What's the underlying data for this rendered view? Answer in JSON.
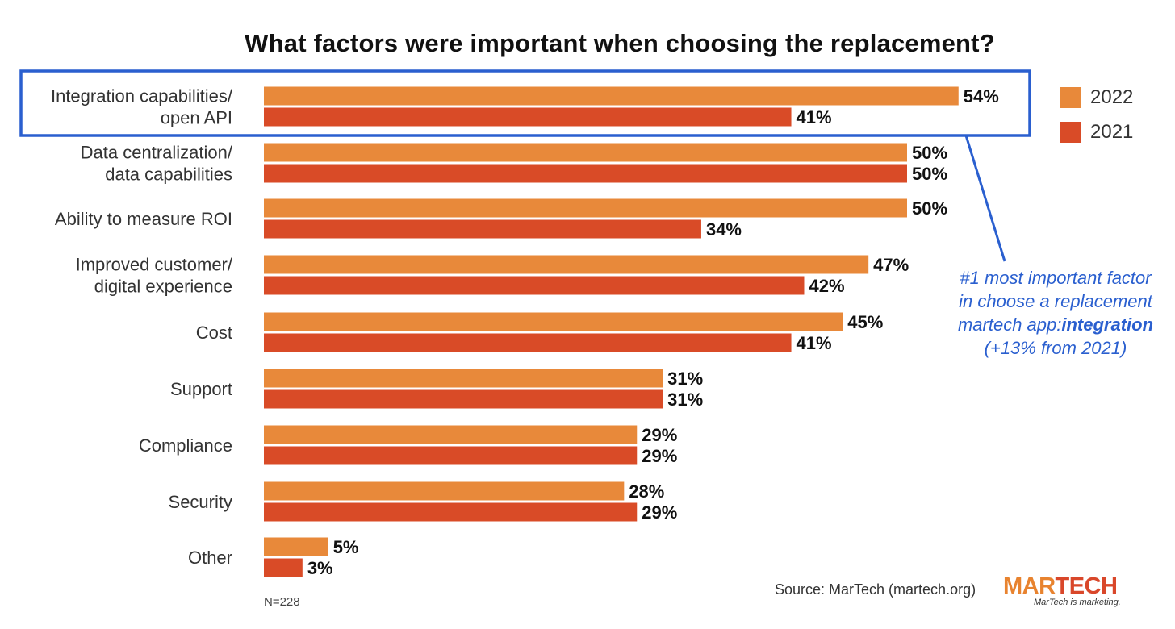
{
  "colors": {
    "series_2022": "#e8893a",
    "series_2021": "#d94b27",
    "highlight": "#2a5fcf"
  },
  "chart_data": {
    "type": "bar",
    "orientation": "horizontal",
    "title": "What factors were important when choosing the replacement?",
    "categories": [
      [
        "Integration capabilities/",
        "open API"
      ],
      [
        "Data centralization/",
        "data capabilities"
      ],
      [
        "Ability to measure ROI"
      ],
      [
        "Improved customer/",
        "digital experience"
      ],
      [
        "Cost"
      ],
      [
        "Support"
      ],
      [
        "Compliance"
      ],
      [
        "Security"
      ],
      [
        "Other"
      ]
    ],
    "series": [
      {
        "name": "2022",
        "values": [
          54,
          50,
          50,
          47,
          45,
          31,
          29,
          28,
          5
        ]
      },
      {
        "name": "2021",
        "values": [
          41,
          50,
          34,
          42,
          41,
          31,
          29,
          29,
          3
        ]
      }
    ],
    "value_suffix": "%",
    "legend_position": "right",
    "grid": false,
    "highlighted_category": 0
  },
  "callout": {
    "line1": "#1 most important factor",
    "line2": "in choose a replacement",
    "line3_prefix": "martech app:",
    "line3_bold": "integration",
    "line4": "(+13% from 2021)"
  },
  "footnote": "N=228",
  "source": "Source: MarTech (martech.org)",
  "logo": {
    "word_left": "MAR",
    "word_right": "TECH",
    "tagline": "MarTech is marketing."
  }
}
